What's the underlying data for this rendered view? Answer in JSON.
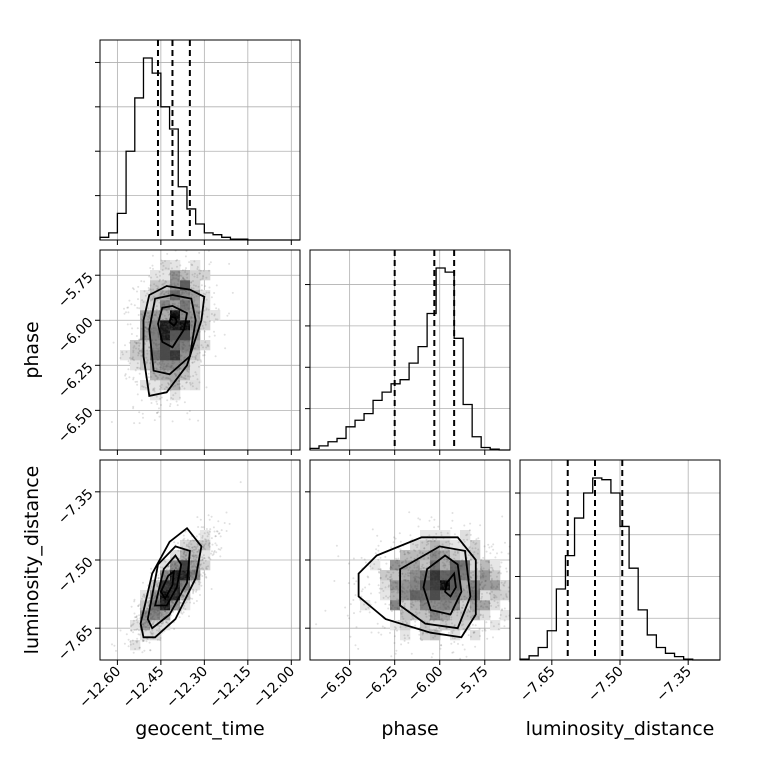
{
  "figure": {
    "type": "corner_plot"
  },
  "chart_data": {
    "type": "corner",
    "parameters": [
      "geocent_time",
      "phase",
      "luminosity_distance"
    ],
    "axes": {
      "geocent_time": {
        "label": "geocent_time",
        "range": [
          -12.66,
          -11.97
        ],
        "ticks": [
          -12.6,
          -12.45,
          -12.3,
          -12.15,
          -12.0
        ],
        "tick_labels": [
          "−12.60",
          "−12.45",
          "−12.30",
          "−12.15",
          "−12.00"
        ],
        "quantiles": [
          -12.46,
          -12.41,
          -12.35
        ]
      },
      "phase": {
        "label": "phase",
        "range": [
          -6.72,
          -5.61
        ],
        "ticks": [
          -6.5,
          -6.25,
          -6.0,
          -5.75
        ],
        "tick_labels": [
          "−6.50",
          "−6.25",
          "−6.00",
          "−5.75"
        ],
        "quantiles": [
          -6.25,
          -6.03,
          -5.92
        ]
      },
      "luminosity_distance": {
        "label": "luminosity_distance",
        "range": [
          -7.72,
          -7.28
        ],
        "ticks": [
          -7.65,
          -7.5,
          -7.35
        ],
        "tick_labels": [
          "−7.65",
          "−7.50",
          "−7.35"
        ],
        "quantiles": [
          -7.615,
          -7.555,
          -7.495
        ]
      }
    },
    "histograms": {
      "geocent_time": {
        "bin_edges": [
          -12.66,
          -12.63,
          -12.6,
          -12.57,
          -12.54,
          -12.51,
          -12.48,
          -12.45,
          -12.42,
          -12.39,
          -12.36,
          -12.33,
          -12.3,
          -12.27,
          -12.24,
          -12.21,
          -12.18,
          -12.15,
          -12.12,
          -12.09,
          -12.06,
          -12.03,
          -12.0,
          -11.97
        ],
        "counts": [
          3,
          8,
          30,
          100,
          160,
          205,
          188,
          150,
          125,
          60,
          35,
          18,
          8,
          6,
          3,
          1,
          1,
          0,
          0,
          0,
          0,
          0,
          0
        ]
      },
      "phase": {
        "bin_edges": [
          -6.72,
          -6.67,
          -6.62,
          -6.57,
          -6.52,
          -6.47,
          -6.42,
          -6.37,
          -6.32,
          -6.27,
          -6.22,
          -6.17,
          -6.12,
          -6.07,
          -6.02,
          -5.97,
          -5.92,
          -5.87,
          -5.82,
          -5.77,
          -5.72,
          -5.67,
          -5.61
        ],
        "counts": [
          2,
          5,
          10,
          14,
          28,
          36,
          44,
          60,
          70,
          80,
          85,
          105,
          125,
          165,
          220,
          215,
          135,
          55,
          16,
          3,
          1,
          0
        ]
      },
      "luminosity_distance": {
        "bin_edges": [
          -7.72,
          -7.7,
          -7.68,
          -7.66,
          -7.64,
          -7.62,
          -7.6,
          -7.58,
          -7.56,
          -7.54,
          -7.52,
          -7.5,
          -7.48,
          -7.46,
          -7.44,
          -7.42,
          -7.4,
          -7.38,
          -7.36,
          -7.34,
          -7.32,
          -7.3,
          -7.28
        ],
        "counts": [
          1,
          5,
          15,
          35,
          85,
          125,
          170,
          200,
          218,
          216,
          200,
          160,
          110,
          60,
          30,
          15,
          8,
          4,
          1,
          0,
          0,
          0
        ]
      }
    },
    "pairs": [
      {
        "x": "geocent_time",
        "y": "phase",
        "mean": [
          -12.41,
          -6.05
        ],
        "sigma": [
          0.065,
          0.19
        ],
        "correlation": 0.2,
        "contours": [
          [
            [
              -12.415,
              -5.98
            ],
            [
              -12.4,
              -5.985
            ],
            [
              -12.395,
              -6.01
            ],
            [
              -12.405,
              -6.03
            ],
            [
              -12.42,
              -6.01
            ],
            [
              -12.415,
              -5.98
            ]
          ],
          [
            [
              -12.445,
              -5.93
            ],
            [
              -12.41,
              -5.92
            ],
            [
              -12.36,
              -5.96
            ],
            [
              -12.37,
              -6.05
            ],
            [
              -12.41,
              -6.15
            ],
            [
              -12.445,
              -6.12
            ],
            [
              -12.46,
              -6.02
            ],
            [
              -12.445,
              -5.93
            ]
          ],
          [
            [
              -12.47,
              -5.88
            ],
            [
              -12.41,
              -5.86
            ],
            [
              -12.345,
              -5.88
            ],
            [
              -12.33,
              -6.0
            ],
            [
              -12.35,
              -6.2
            ],
            [
              -12.42,
              -6.3
            ],
            [
              -12.475,
              -6.28
            ],
            [
              -12.49,
              -6.05
            ],
            [
              -12.47,
              -5.88
            ]
          ],
          [
            [
              -12.49,
              -5.86
            ],
            [
              -12.43,
              -5.81
            ],
            [
              -12.35,
              -5.83
            ],
            [
              -12.3,
              -5.87
            ],
            [
              -12.31,
              -6.0
            ],
            [
              -12.36,
              -6.25
            ],
            [
              -12.43,
              -6.4
            ],
            [
              -12.49,
              -6.42
            ],
            [
              -12.51,
              -6.2
            ],
            [
              -12.51,
              -6.0
            ],
            [
              -12.49,
              -5.86
            ]
          ]
        ]
      },
      {
        "x": "geocent_time",
        "y": "luminosity_distance",
        "mean": [
          -12.41,
          -7.56
        ],
        "sigma": [
          0.065,
          0.055
        ],
        "correlation": 0.8,
        "contours": [
          [
            [
              -12.45,
              -7.57
            ],
            [
              -12.425,
              -7.535
            ],
            [
              -12.405,
              -7.525
            ],
            [
              -12.41,
              -7.555
            ],
            [
              -12.435,
              -7.585
            ],
            [
              -12.45,
              -7.57
            ]
          ],
          [
            [
              -12.47,
              -7.6
            ],
            [
              -12.44,
              -7.52
            ],
            [
              -12.4,
              -7.49
            ],
            [
              -12.38,
              -7.51
            ],
            [
              -12.395,
              -7.56
            ],
            [
              -12.43,
              -7.6
            ],
            [
              -12.47,
              -7.6
            ]
          ],
          [
            [
              -12.495,
              -7.63
            ],
            [
              -12.46,
              -7.51
            ],
            [
              -12.4,
              -7.47
            ],
            [
              -12.35,
              -7.48
            ],
            [
              -12.36,
              -7.55
            ],
            [
              -12.42,
              -7.62
            ],
            [
              -12.48,
              -7.65
            ],
            [
              -12.495,
              -7.63
            ]
          ],
          [
            [
              -12.52,
              -7.64
            ],
            [
              -12.48,
              -7.53
            ],
            [
              -12.42,
              -7.46
            ],
            [
              -12.36,
              -7.43
            ],
            [
              -12.31,
              -7.47
            ],
            [
              -12.33,
              -7.54
            ],
            [
              -12.4,
              -7.63
            ],
            [
              -12.47,
              -7.67
            ],
            [
              -12.51,
              -7.67
            ],
            [
              -12.52,
              -7.64
            ]
          ]
        ]
      },
      {
        "x": "phase",
        "y": "luminosity_distance",
        "mean": [
          -6.0,
          -7.56
        ],
        "sigma": [
          0.19,
          0.055
        ],
        "correlation": 0.0,
        "contours": [
          [
            [
              -5.96,
              -7.55
            ],
            [
              -5.92,
              -7.53
            ],
            [
              -5.91,
              -7.56
            ],
            [
              -5.94,
              -7.58
            ],
            [
              -5.97,
              -7.57
            ],
            [
              -5.96,
              -7.55
            ]
          ],
          [
            [
              -6.07,
              -7.52
            ],
            [
              -5.97,
              -7.49
            ],
            [
              -5.9,
              -7.51
            ],
            [
              -5.88,
              -7.57
            ],
            [
              -5.94,
              -7.62
            ],
            [
              -6.05,
              -7.61
            ],
            [
              -6.09,
              -7.56
            ],
            [
              -6.07,
              -7.52
            ]
          ],
          [
            [
              -6.22,
              -7.52
            ],
            [
              -6.0,
              -7.47
            ],
            [
              -5.86,
              -7.48
            ],
            [
              -5.83,
              -7.58
            ],
            [
              -5.9,
              -7.65
            ],
            [
              -6.08,
              -7.64
            ],
            [
              -6.22,
              -7.6
            ],
            [
              -6.22,
              -7.52
            ]
          ],
          [
            [
              -6.45,
              -7.53
            ],
            [
              -6.35,
              -7.49
            ],
            [
              -6.1,
              -7.45
            ],
            [
              -5.9,
              -7.45
            ],
            [
              -5.8,
              -7.5
            ],
            [
              -5.8,
              -7.62
            ],
            [
              -5.88,
              -7.67
            ],
            [
              -6.05,
              -7.66
            ],
            [
              -6.3,
              -7.63
            ],
            [
              -6.45,
              -7.58
            ],
            [
              -6.45,
              -7.53
            ]
          ]
        ]
      }
    ],
    "grid": true
  }
}
